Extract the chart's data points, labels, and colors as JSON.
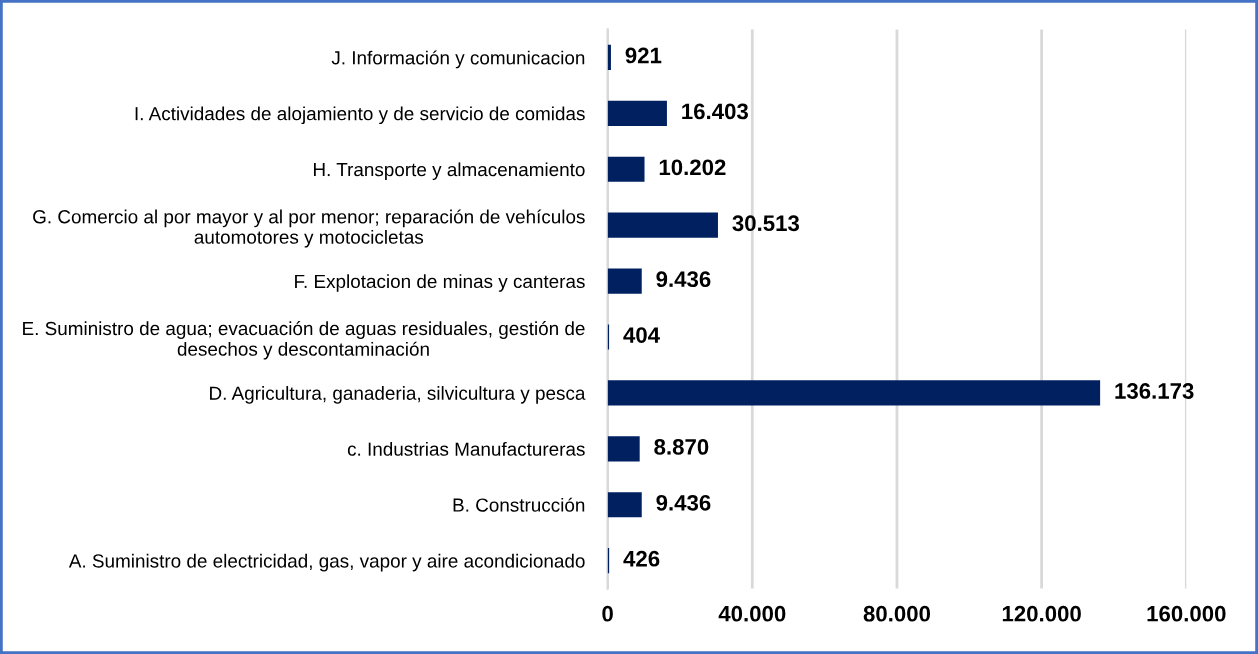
{
  "chart_data": {
    "type": "bar",
    "orientation": "horizontal",
    "categories": [
      "J. Información y comunicacion",
      "I. Actividades de alojamiento y de servicio de comidas",
      "H. Transporte y almacenamiento",
      "G. Comercio al por mayor y al por menor; reparación de vehículos\nautomotores y motocicletas",
      "F. Explotacion de minas y canteras",
      "E. Suministro de agua; evacuación de aguas residuales, gestión de\ndesechos y descontaminación",
      "D. Agricultura, ganaderia, silvicultura y pesca",
      "c. Industrias Manufactureras",
      "B. Construcción",
      "A. Suministro de electricidad, gas, vapor y aire acondicionado"
    ],
    "values": [
      921,
      16403,
      10202,
      30513,
      9436,
      404,
      136173,
      8870,
      9436,
      426
    ],
    "value_labels": [
      "921",
      "16.403",
      "10.202",
      "30.513",
      "9.436",
      "404",
      "136.173",
      "8.870",
      "9.436",
      "426"
    ],
    "color": "#002060",
    "xlim": [
      0,
      160000
    ],
    "xticks": [
      0,
      {
        "value": 40000,
        "label": "40.000"
      },
      {
        "value": 80000,
        "label": "80.000"
      },
      {
        "value": 120000,
        "label": "120.000"
      },
      {
        "value": 160000,
        "label": "160.000"
      }
    ],
    "grid": "x",
    "legend": false
  }
}
